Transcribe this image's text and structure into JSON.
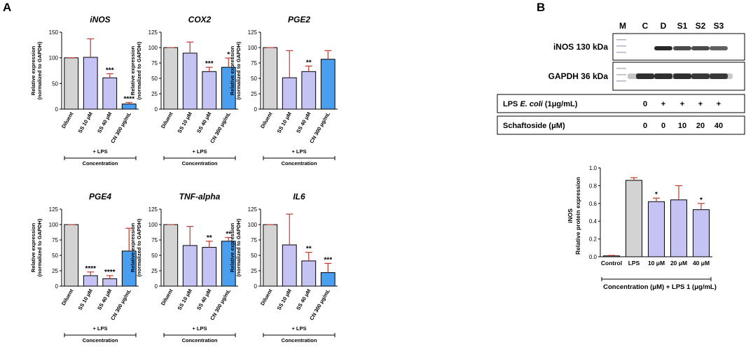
{
  "panels": {
    "a_label": "A",
    "b_label": "B"
  },
  "colors": {
    "diluent": "#d3d3d3",
    "ss": "#c5c3f4",
    "cn": "#4a9ef0",
    "error": "#c0392b",
    "lps": "#d3d3d3",
    "blot_dark": "#1e1e1e"
  },
  "y_axis_label_line1": "Relative expression",
  "y_axis_label_line2": "(normalized to GAPDH)",
  "lps_group_label": "+ LPS",
  "concentration_label": "Concentration",
  "chart_data": [
    {
      "type": "bar",
      "title": "iNOS",
      "categories": [
        "Diluent",
        "SS 10 μM",
        "SS 40 μM",
        "CN 300 μg/mL"
      ],
      "values": [
        100,
        101,
        61,
        10
      ],
      "errors": [
        0,
        36,
        8,
        3
      ],
      "significance": [
        "",
        "",
        "***",
        "****"
      ],
      "ylim": [
        0,
        150
      ],
      "yticks": [
        "0",
        "50",
        "100",
        "150"
      ]
    },
    {
      "type": "bar",
      "title": "COX2",
      "categories": [
        "Diluent",
        "SS 10 μM",
        "SS 40 μM",
        "CN 300 μg/mL"
      ],
      "values": [
        100,
        91,
        61,
        68
      ],
      "errors": [
        0,
        18,
        7,
        15
      ],
      "significance": [
        "",
        "",
        "***",
        "*"
      ],
      "ylim": [
        0,
        125
      ],
      "yticks": [
        "0",
        "25",
        "50",
        "75",
        "100",
        "125"
      ]
    },
    {
      "type": "bar",
      "title": "PGE2",
      "categories": [
        "Diluent",
        "SS 10 μM",
        "SS 40 μM",
        "CN 300 μg/mL"
      ],
      "values": [
        100,
        51,
        61,
        81
      ],
      "errors": [
        0,
        44,
        9,
        14
      ],
      "significance": [
        "",
        "",
        "**",
        ""
      ],
      "ylim": [
        0,
        125
      ],
      "yticks": [
        "0",
        "25",
        "50",
        "75",
        "100",
        "125"
      ]
    },
    {
      "type": "bar",
      "title": "PGE4",
      "categories": [
        "Diluent",
        "SS 10 μM",
        "SS 40 μM",
        "CN 300 μg/mL"
      ],
      "values": [
        100,
        17,
        12,
        57
      ],
      "errors": [
        0,
        6,
        5,
        37
      ],
      "significance": [
        "",
        "****",
        "****",
        ""
      ],
      "ylim": [
        0,
        125
      ],
      "yticks": [
        "0",
        "25",
        "50",
        "75",
        "100",
        "125"
      ]
    },
    {
      "type": "bar",
      "title": "TNF-alpha",
      "categories": [
        "Diluent",
        "SS 10 μM",
        "SS 40 μM",
        "CN 300 μg/mL"
      ],
      "values": [
        100,
        66,
        63,
        73
      ],
      "errors": [
        0,
        31,
        10,
        6
      ],
      "significance": [
        "",
        "",
        "**",
        "**"
      ],
      "ylim": [
        0,
        125
      ],
      "yticks": [
        "0",
        "25",
        "50",
        "75",
        "100",
        "125"
      ]
    },
    {
      "type": "bar",
      "title": "IL6",
      "categories": [
        "Diluent",
        "SS 10 μM",
        "SS 40 μM",
        "CN 300 μg/mL"
      ],
      "values": [
        100,
        67,
        41,
        22
      ],
      "errors": [
        0,
        50,
        14,
        15
      ],
      "significance": [
        "",
        "",
        "**",
        "***"
      ],
      "ylim": [
        0,
        125
      ],
      "yticks": [
        "0",
        "25",
        "50",
        "75",
        "100",
        "125"
      ]
    },
    {
      "type": "bar",
      "title": "",
      "ylabel_line1": "iNOS",
      "ylabel_line2": "Relative protein expression",
      "categories": [
        "Control",
        "LPS",
        "10 μM",
        "20 μM",
        "40 μM"
      ],
      "values": [
        0.01,
        0.86,
        0.62,
        0.64,
        0.53
      ],
      "errors": [
        0.005,
        0.03,
        0.04,
        0.16,
        0.07
      ],
      "significance": [
        "",
        "",
        "*",
        "",
        "*"
      ],
      "ylim": [
        0,
        1.0
      ],
      "yticks": [
        "0.0",
        "0.2",
        "0.4",
        "0.6",
        "0.8",
        "1.0"
      ],
      "xlabel": "Concentration (μM) + LPS 1 (μg/mL)"
    }
  ],
  "western_blot": {
    "lanes": [
      "M",
      "C",
      "D",
      "S1",
      "S2",
      "S3"
    ],
    "bands": [
      {
        "label": "iNOS 130 kDa",
        "intensities": [
          0,
          0,
          0.95,
          0.8,
          0.8,
          0.7
        ]
      },
      {
        "label": "GAPDH 36 kDa",
        "intensities": [
          0,
          0.9,
          0.9,
          0.9,
          0.85,
          0.85
        ]
      }
    ],
    "condition_rows": [
      {
        "label_pre": "LPS ",
        "label_italic": "E. coli",
        "label_post": " (1μg/mL)",
        "values": [
          "0",
          "+",
          "+",
          "+",
          "+"
        ]
      },
      {
        "label_pre": "Schaftoside (μM)",
        "label_italic": "",
        "label_post": "",
        "values": [
          "0",
          "0",
          "10",
          "20",
          "40"
        ]
      }
    ]
  }
}
